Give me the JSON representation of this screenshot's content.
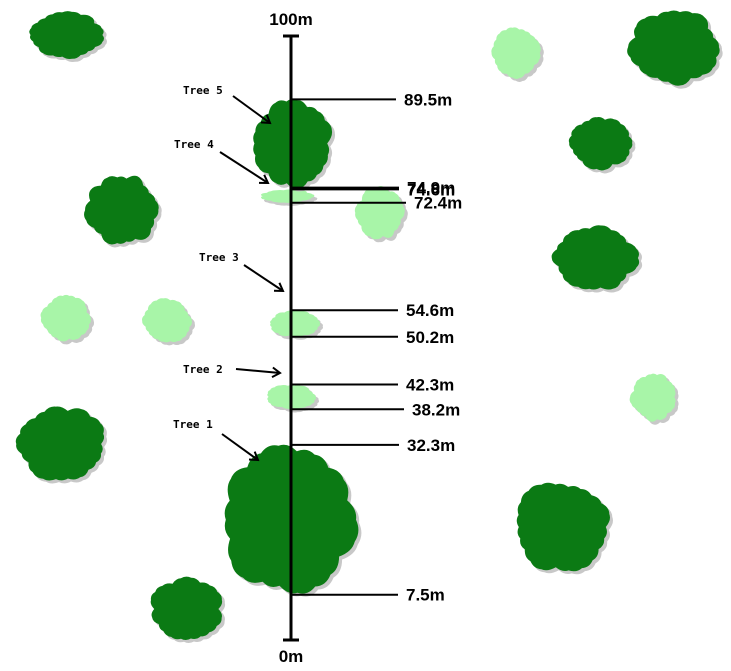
{
  "axis": {
    "top_label": "100m",
    "bottom_label": "0m",
    "min": 0,
    "max": 100
  },
  "colors": {
    "dark_tree": "#0b7a14",
    "light_tree": "#a8f5a8",
    "shadow": "#c8c8c8",
    "line": "#000000"
  },
  "measurements": [
    {
      "label": "89.5m",
      "value": 89.5,
      "side": "top",
      "tree": 5
    },
    {
      "label": "74.9m",
      "value": 74.9,
      "side": "bottom",
      "tree": 5
    },
    {
      "label": "74.6m",
      "value": 74.6,
      "side": "top",
      "tree": 4
    },
    {
      "label": "72.4m",
      "value": 72.4,
      "side": "bottom",
      "tree": 4
    },
    {
      "label": "54.6m",
      "value": 54.6,
      "side": "top",
      "tree": 3
    },
    {
      "label": "50.2m",
      "value": 50.2,
      "side": "bottom",
      "tree": 3
    },
    {
      "label": "42.3m",
      "value": 42.3,
      "side": "top",
      "tree": 2
    },
    {
      "label": "38.2m",
      "value": 38.2,
      "side": "bottom",
      "tree": 2
    },
    {
      "label": "32.3m",
      "value": 32.3,
      "side": "top",
      "tree": 1
    },
    {
      "label": "7.5m",
      "value": 7.5,
      "side": "bottom",
      "tree": 1
    }
  ],
  "trees": [
    {
      "label": "Tree 1",
      "crown": "dark"
    },
    {
      "label": "Tree 2",
      "crown": "light"
    },
    {
      "label": "Tree 3",
      "crown": "light"
    },
    {
      "label": "Tree 4",
      "crown": "light"
    },
    {
      "label": "Tree 5",
      "crown": "dark"
    }
  ]
}
